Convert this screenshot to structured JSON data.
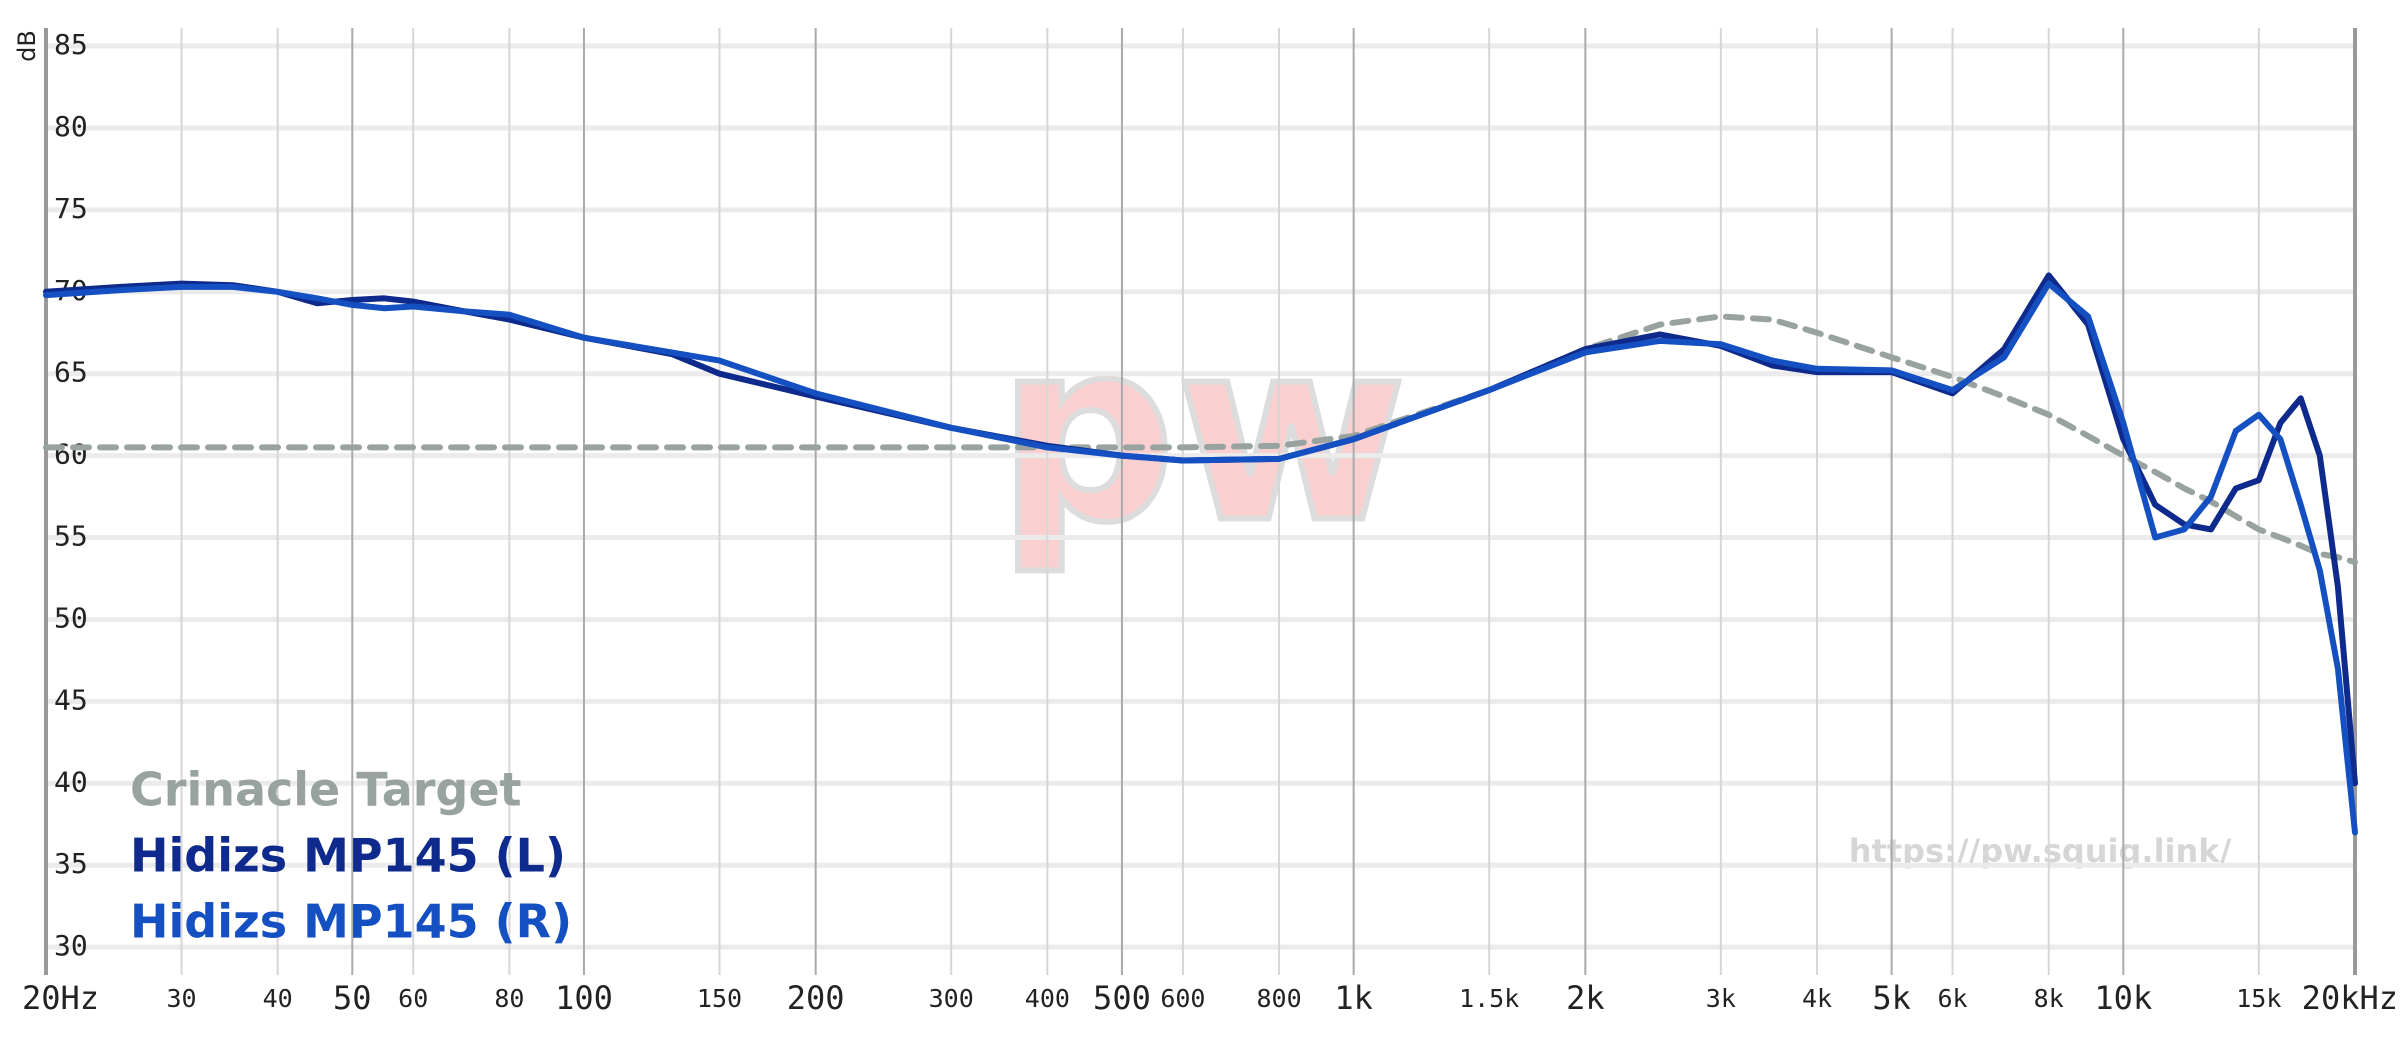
{
  "chart_data": {
    "type": "line",
    "x_scale": "log",
    "legend": "lower-left",
    "grid": true,
    "ylabel": "dB",
    "watermark_logo": "pw",
    "watermark_url": "https://pw.squig.link/",
    "xlim": [
      20,
      20000
    ],
    "ylim": [
      28.3,
      86.1
    ],
    "xticks": [
      {
        "value": 20,
        "label": "20Hz"
      },
      30,
      40,
      50,
      60,
      80,
      100,
      150,
      200,
      300,
      400,
      500,
      600,
      800,
      {
        "value": 1000,
        "label": "1k"
      },
      {
        "value": 1500,
        "label": "1.5k"
      },
      {
        "value": 2000,
        "label": "2k"
      },
      {
        "value": 3000,
        "label": "3k"
      },
      {
        "value": 4000,
        "label": "4k"
      },
      {
        "value": 5000,
        "label": "5k"
      },
      {
        "value": 6000,
        "label": "6k"
      },
      {
        "value": 8000,
        "label": "8k"
      },
      {
        "value": 10000,
        "label": "10k"
      },
      {
        "value": 15000,
        "label": "15k"
      },
      {
        "value": 20000,
        "label": "20kHz"
      }
    ],
    "yticks": [
      30,
      35,
      40,
      45,
      50,
      55,
      60,
      65,
      70,
      75,
      80,
      85
    ],
    "x": [
      20,
      25,
      30,
      35,
      40,
      45,
      50,
      55,
      60,
      70,
      80,
      100,
      130,
      150,
      200,
      300,
      400,
      500,
      600,
      800,
      1000,
      1500,
      2000,
      2500,
      3000,
      3500,
      4000,
      5000,
      6000,
      7000,
      8000,
      9000,
      10000,
      11000,
      12000,
      13000,
      14000,
      15000,
      16000,
      17000,
      18000,
      19000,
      20000
    ],
    "series": [
      {
        "name": "Crinacle Target",
        "color": "#98a3a0",
        "dashed": true,
        "values": [
          60.5,
          60.5,
          60.5,
          60.5,
          60.5,
          60.5,
          60.5,
          60.5,
          60.5,
          60.5,
          60.5,
          60.5,
          60.5,
          60.5,
          60.5,
          60.5,
          60.5,
          60.5,
          60.5,
          60.6,
          61.2,
          64,
          66.5,
          68,
          68.5,
          68.3,
          67.5,
          66,
          64.8,
          63.6,
          62.5,
          61.2,
          60,
          59,
          58,
          57.2,
          56.3,
          55.5,
          55,
          54.5,
          54,
          53.8,
          53.5
        ]
      },
      {
        "name": "Hidizs MP145 (L)",
        "color": "#0d2a8c",
        "dashed": false,
        "values": [
          70,
          70.3,
          70.5,
          70.4,
          70,
          69.3,
          69.5,
          69.6,
          69.4,
          68.8,
          68.3,
          67.2,
          66.2,
          65,
          63.6,
          61.7,
          60.6,
          60,
          59.7,
          59.8,
          61,
          64,
          66.5,
          67.4,
          66.7,
          65.5,
          65.1,
          65.1,
          63.8,
          66.5,
          71,
          68,
          61,
          57,
          55.8,
          55.5,
          58,
          58.5,
          62,
          63.5,
          60,
          52,
          40
        ]
      },
      {
        "name": "Hidizs MP145 (R)",
        "color": "#1450c2",
        "dashed": false,
        "values": [
          69.8,
          70.1,
          70.3,
          70.3,
          70,
          69.6,
          69.2,
          69,
          69.1,
          68.8,
          68.6,
          67.2,
          66.3,
          65.8,
          63.8,
          61.7,
          60.5,
          60,
          59.7,
          59.8,
          61,
          64,
          66.3,
          67,
          66.8,
          65.8,
          65.3,
          65.2,
          64,
          66,
          70.5,
          68.5,
          62,
          55,
          55.5,
          57.5,
          61.5,
          62.5,
          61,
          57,
          53,
          47,
          37
        ]
      }
    ]
  }
}
